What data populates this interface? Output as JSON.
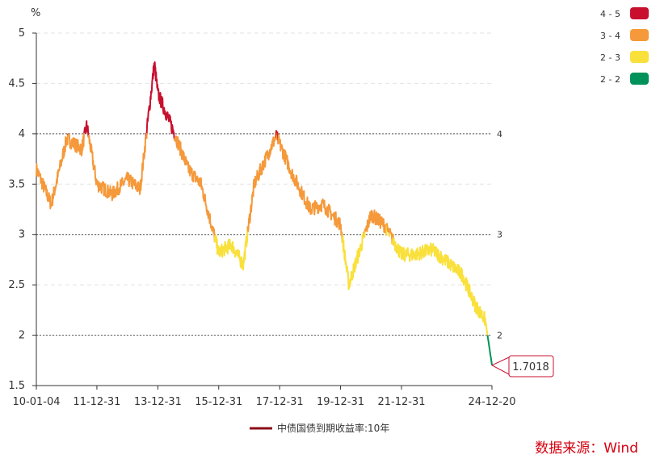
{
  "chart_data": {
    "type": "line",
    "unit_label": "%",
    "series": [
      {
        "name": "中债国债到期收益率:10年",
        "x": [
          "10-01-04",
          "10-07-01",
          "11-01-04",
          "11-07-01",
          "11-09-01",
          "11-12-31",
          "12-07-01",
          "12-12-31",
          "13-06-01",
          "13-11-20",
          "13-12-31",
          "14-06-01",
          "14-12-31",
          "15-06-01",
          "15-12-31",
          "16-06-01",
          "16-10-20",
          "17-03-01",
          "17-11-20",
          "18-06-01",
          "18-12-31",
          "19-06-01",
          "19-12-31",
          "20-04-08",
          "20-12-31",
          "21-06-01",
          "21-12-31",
          "22-06-01",
          "22-12-31",
          "23-06-01",
          "23-12-31",
          "24-06-01",
          "24-10-01",
          "24-12-20"
        ],
        "values": [
          3.65,
          3.3,
          3.95,
          3.85,
          4.08,
          3.5,
          3.4,
          3.55,
          3.45,
          4.7,
          4.4,
          4.1,
          3.65,
          3.5,
          2.82,
          2.9,
          2.7,
          3.5,
          3.98,
          3.6,
          3.25,
          3.3,
          3.1,
          2.5,
          3.2,
          3.1,
          2.8,
          2.8,
          2.85,
          2.75,
          2.6,
          2.3,
          2.15,
          1.7018
        ]
      }
    ],
    "x_ticks": [
      "10-01-04",
      "11-12-31",
      "13-12-31",
      "15-12-31",
      "17-12-31",
      "19-12-31",
      "21-12-31",
      "24-12-20"
    ],
    "y_ticks": [
      "1.5",
      "2",
      "2.5",
      "3",
      "3.5",
      "4",
      "4.5",
      "5"
    ],
    "ylim": [
      1.5,
      5
    ],
    "reference_lines": [
      {
        "value": 2,
        "label": "2"
      },
      {
        "value": 3,
        "label": "3"
      },
      {
        "value": 4,
        "label": "4"
      }
    ],
    "visual_map": [
      {
        "label": "4 - 5",
        "color": "#c8102e",
        "min": 4,
        "max": 5
      },
      {
        "label": "3 - 4",
        "color": "#f5993a",
        "min": 3,
        "max": 4
      },
      {
        "label": "2 - 3",
        "color": "#f9e03b",
        "min": 2,
        "max": 3
      },
      {
        "label": "2 - 2",
        "color": "#00925a",
        "min": 0,
        "max": 2
      }
    ],
    "annotation": {
      "x": "24-12-20",
      "value": 1.7018,
      "label": "1.7018"
    },
    "legend": {
      "label": "中债国债到期收益率:10年",
      "color": "#8b0d16",
      "placement": "bottom-center"
    },
    "grid": "horizontal-dashed"
  },
  "source": {
    "text": "数据来源：Wind"
  }
}
